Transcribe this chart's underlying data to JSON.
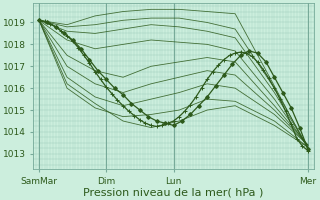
{
  "bg_color": "#cceedd",
  "grid_color_h": "#99ccbb",
  "grid_color_v": "#99ccbb",
  "line_color": "#2d5a1b",
  "xlabel": "Pression niveau de la mer( hPa )",
  "xlabel_fontsize": 8,
  "yticks": [
    1013,
    1014,
    1015,
    1016,
    1017,
    1018,
    1019
  ],
  "ylim": [
    1012.3,
    1019.9
  ],
  "xlim": [
    0,
    100
  ],
  "xtick_positions": [
    2,
    26,
    50,
    98
  ],
  "xtick_labels": [
    "SamMar",
    "Dim",
    "Lun",
    "Mer"
  ],
  "vline_positions": [
    2,
    26,
    50,
    98
  ],
  "ensemble_lines": [
    [
      1019.1,
      1018.9,
      1019.3,
      1019.5,
      1019.6,
      1019.6,
      1019.5,
      1019.4,
      1016.1,
      1013.2
    ],
    [
      1019.1,
      1018.8,
      1018.9,
      1019.1,
      1019.2,
      1019.2,
      1019.0,
      1018.7,
      1016.0,
      1013.3
    ],
    [
      1019.1,
      1018.6,
      1018.5,
      1018.7,
      1018.9,
      1018.8,
      1018.6,
      1018.3,
      1015.8,
      1013.3
    ],
    [
      1019.1,
      1018.2,
      1017.8,
      1018.0,
      1018.2,
      1018.1,
      1018.0,
      1017.7,
      1015.5,
      1013.3
    ],
    [
      1019.1,
      1017.5,
      1016.8,
      1016.5,
      1017.0,
      1017.2,
      1017.4,
      1017.2,
      1015.2,
      1013.4
    ],
    [
      1019.1,
      1017.0,
      1016.2,
      1015.8,
      1016.2,
      1016.5,
      1016.8,
      1016.6,
      1015.0,
      1013.4
    ],
    [
      1019.1,
      1016.5,
      1015.6,
      1015.2,
      1015.5,
      1015.8,
      1016.2,
      1016.0,
      1014.8,
      1013.4
    ],
    [
      1019.1,
      1016.0,
      1015.1,
      1014.7,
      1014.8,
      1015.0,
      1015.5,
      1015.4,
      1014.5,
      1013.3
    ],
    [
      1019.1,
      1016.2,
      1015.3,
      1014.5,
      1014.2,
      1014.5,
      1015.0,
      1015.2,
      1014.3,
      1013.3
    ]
  ],
  "ensemble_x": [
    2,
    12,
    22,
    32,
    42,
    52,
    62,
    72,
    86,
    98
  ],
  "main_line_x": [
    2,
    5,
    8,
    11,
    14,
    17,
    20,
    23,
    26,
    29,
    32,
    35,
    38,
    41,
    44,
    47,
    50,
    53,
    56,
    59,
    62,
    65,
    68,
    71,
    74,
    77,
    80,
    83,
    86,
    89,
    92,
    95,
    98
  ],
  "main_line_y": [
    1019.1,
    1019.0,
    1018.8,
    1018.5,
    1018.2,
    1017.8,
    1017.3,
    1016.8,
    1016.4,
    1016.0,
    1015.7,
    1015.3,
    1015.0,
    1014.7,
    1014.5,
    1014.4,
    1014.3,
    1014.5,
    1014.8,
    1015.2,
    1015.6,
    1016.1,
    1016.6,
    1017.1,
    1017.5,
    1017.7,
    1017.6,
    1017.2,
    1016.5,
    1015.8,
    1015.1,
    1014.2,
    1013.2
  ],
  "detail_line_x": [
    2,
    4,
    6,
    8,
    10,
    12,
    14,
    16,
    18,
    20,
    22,
    24,
    26,
    28,
    30,
    32,
    34,
    36,
    38,
    40,
    42,
    44,
    46,
    48,
    50,
    52,
    54,
    56,
    58,
    60,
    62,
    64,
    66,
    68,
    70,
    72,
    74,
    76,
    78,
    80,
    82,
    84,
    86,
    88,
    90,
    92,
    94,
    96,
    98
  ],
  "detail_line_y": [
    1019.1,
    1019.05,
    1018.95,
    1018.8,
    1018.6,
    1018.4,
    1018.15,
    1017.85,
    1017.5,
    1017.15,
    1016.75,
    1016.4,
    1016.05,
    1015.75,
    1015.45,
    1015.2,
    1014.95,
    1014.75,
    1014.55,
    1014.4,
    1014.3,
    1014.25,
    1014.3,
    1014.4,
    1014.5,
    1014.7,
    1014.95,
    1015.25,
    1015.6,
    1016.0,
    1016.4,
    1016.75,
    1017.05,
    1017.3,
    1017.5,
    1017.6,
    1017.65,
    1017.6,
    1017.45,
    1017.2,
    1016.85,
    1016.45,
    1016.0,
    1015.5,
    1014.95,
    1014.35,
    1013.7,
    1013.35,
    1013.15
  ]
}
